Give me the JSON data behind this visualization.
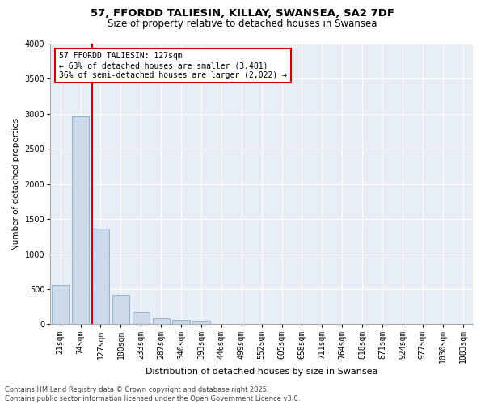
{
  "title1": "57, FFORDD TALIESIN, KILLAY, SWANSEA, SA2 7DF",
  "title2": "Size of property relative to detached houses in Swansea",
  "xlabel": "Distribution of detached houses by size in Swansea",
  "ylabel": "Number of detached properties",
  "categories": [
    "21sqm",
    "74sqm",
    "127sqm",
    "180sqm",
    "233sqm",
    "287sqm",
    "340sqm",
    "393sqm",
    "446sqm",
    "499sqm",
    "552sqm",
    "605sqm",
    "658sqm",
    "711sqm",
    "764sqm",
    "818sqm",
    "871sqm",
    "924sqm",
    "977sqm",
    "1030sqm",
    "1083sqm"
  ],
  "values": [
    560,
    2960,
    1360,
    420,
    175,
    90,
    60,
    45,
    0,
    0,
    0,
    0,
    0,
    0,
    0,
    0,
    0,
    0,
    0,
    0,
    0
  ],
  "bar_color": "#ccd9e8",
  "bar_edge_color": "#8aaac8",
  "vline_color": "#cc0000",
  "annotation_text": "57 FFORDD TALIESIN: 127sqm\n← 63% of detached houses are smaller (3,481)\n36% of semi-detached houses are larger (2,022) →",
  "annotation_box_edge_color": "#cc0000",
  "annotation_box_facecolor": "white",
  "ylim": [
    0,
    4000
  ],
  "yticks": [
    0,
    500,
    1000,
    1500,
    2000,
    2500,
    3000,
    3500,
    4000
  ],
  "footer_line1": "Contains HM Land Registry data © Crown copyright and database right 2025.",
  "footer_line2": "Contains public sector information licensed under the Open Government Licence v3.0.",
  "title1_fontsize": 9.5,
  "title2_fontsize": 8.5,
  "xlabel_fontsize": 8,
  "ylabel_fontsize": 7.5,
  "tick_fontsize": 7,
  "annot_fontsize": 7,
  "footer_fontsize": 6,
  "background_color": "#e8eef5",
  "grid_color": "#ffffff"
}
